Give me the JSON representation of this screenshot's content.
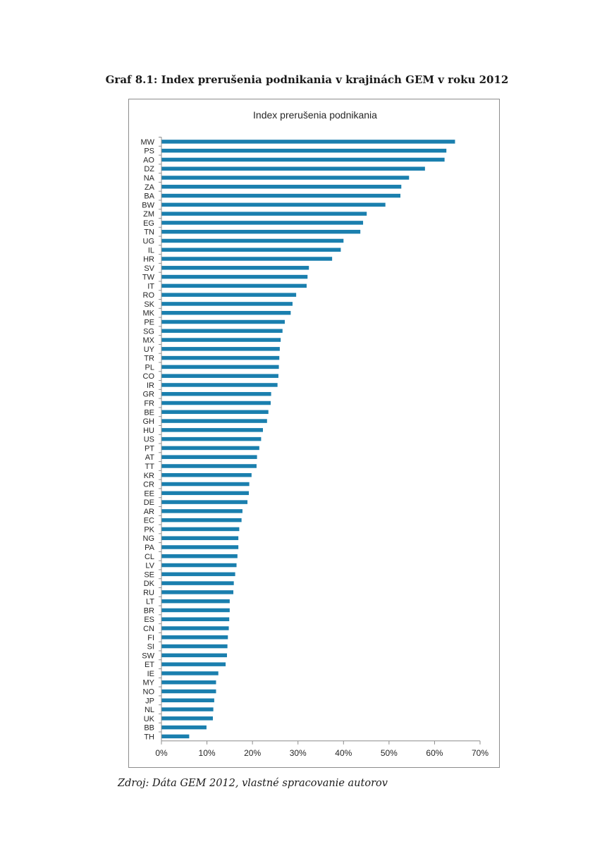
{
  "document": {
    "title": "Graf 8.1: Index prerušenia podnikania v krajinách GEM v roku 2012",
    "source": "Zdroj: Dáta GEM 2012, vlastné spracovanie autorov"
  },
  "colors": {
    "bar": "#1a7fae",
    "axis": "#8c8c8c",
    "frame": "#8c8c8c"
  },
  "chart_data": {
    "type": "bar",
    "orientation": "horizontal",
    "title": "Index prerušenia podnikania",
    "xlabel": "",
    "ylabel": "",
    "xlim": [
      0,
      0.7
    ],
    "xticks": [
      0,
      0.1,
      0.2,
      0.3,
      0.4,
      0.5,
      0.6,
      0.7
    ],
    "xtick_labels": [
      "0%",
      "10%",
      "20%",
      "30%",
      "40%",
      "50%",
      "60%",
      "70%"
    ],
    "grid": false,
    "legend": "none",
    "categories": [
      "MW",
      "PS",
      "AO",
      "DZ",
      "NA",
      "ZA",
      "BA",
      "BW",
      "ZM",
      "EG",
      "TN",
      "UG",
      "IL",
      "HR",
      "SV",
      "TW",
      "IT",
      "RO",
      "SK",
      "MK",
      "PE",
      "SG",
      "MX",
      "UY",
      "TR",
      "PL",
      "CO",
      "IR",
      "GR",
      "FR",
      "BE",
      "GH",
      "HU",
      "US",
      "PT",
      "AT",
      "TT",
      "KR",
      "CR",
      "EE",
      "DE",
      "AR",
      "EC",
      "PK",
      "NG",
      "PA",
      "CL",
      "LV",
      "SE",
      "DK",
      "RU",
      "LT",
      "BR",
      "ES",
      "CN",
      "FI",
      "SI",
      "SW",
      "ET",
      "IE",
      "MY",
      "NO",
      "JP",
      "NL",
      "UK",
      "BB",
      "TH"
    ],
    "values": [
      0.645,
      0.626,
      0.622,
      0.579,
      0.544,
      0.527,
      0.525,
      0.492,
      0.451,
      0.443,
      0.437,
      0.4,
      0.394,
      0.375,
      0.324,
      0.321,
      0.319,
      0.296,
      0.288,
      0.284,
      0.271,
      0.266,
      0.262,
      0.26,
      0.259,
      0.258,
      0.257,
      0.255,
      0.241,
      0.24,
      0.235,
      0.232,
      0.223,
      0.219,
      0.215,
      0.21,
      0.209,
      0.198,
      0.193,
      0.192,
      0.189,
      0.178,
      0.176,
      0.171,
      0.169,
      0.169,
      0.167,
      0.165,
      0.162,
      0.159,
      0.158,
      0.15,
      0.15,
      0.149,
      0.148,
      0.146,
      0.145,
      0.144,
      0.141,
      0.125,
      0.12,
      0.12,
      0.116,
      0.114,
      0.113,
      0.099,
      0.061
    ]
  }
}
